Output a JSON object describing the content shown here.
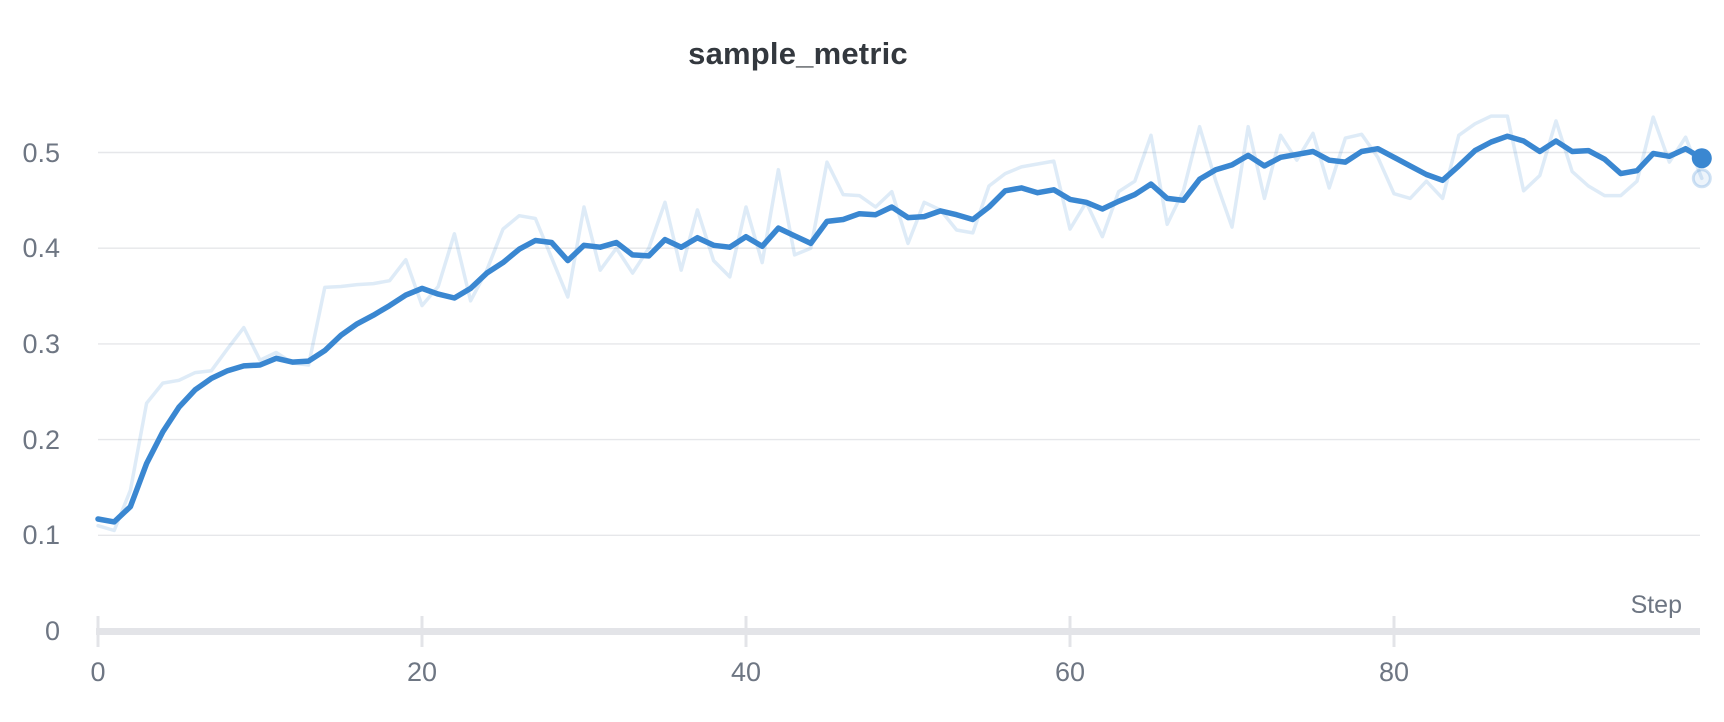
{
  "header": {
    "title": "sample_metric"
  },
  "colors": {
    "accent": "#3a87d1",
    "raw_line": "#d9e7f8",
    "title_text": "#33383e",
    "axis_text": "#6e7683",
    "gridline": "#e6e7ea",
    "axis_bar": "#e3e4e8",
    "background": "#ffffff"
  },
  "axes": {
    "x_label": "Step",
    "x_tick_labels": [
      "0",
      "20",
      "40",
      "60",
      "80"
    ],
    "y_tick_labels": [
      "0.5",
      "0.4",
      "0.3",
      "0.2",
      "0.1",
      "0"
    ]
  },
  "chart_data": {
    "type": "line",
    "title": "sample_metric",
    "xlabel": "Step",
    "ylabel": "",
    "x_min": 0,
    "x_max": 99,
    "x_step": 1,
    "xlim": [
      0,
      99
    ],
    "ylim": [
      0,
      0.55
    ],
    "x_ticks": [
      0,
      20,
      40,
      60,
      80
    ],
    "y_ticks": [
      0,
      0.1,
      0.2,
      0.3,
      0.4,
      0.5
    ],
    "grid": "horizontal",
    "legend": "none",
    "end_markers": {
      "smoothed_solid_dot": true,
      "raw_ghost_dot": true
    },
    "series": [
      {
        "name": "raw",
        "style": "faint",
        "values": [
          0.11,
          0.105,
          0.147,
          0.238,
          0.259,
          0.262,
          0.27,
          0.272,
          0.295,
          0.317,
          0.283,
          0.291,
          0.28,
          0.278,
          0.359,
          0.36,
          0.362,
          0.363,
          0.366,
          0.388,
          0.34,
          0.36,
          0.415,
          0.345,
          0.377,
          0.42,
          0.434,
          0.431,
          0.39,
          0.349,
          0.443,
          0.377,
          0.4,
          0.374,
          0.4,
          0.448,
          0.377,
          0.44,
          0.387,
          0.37,
          0.443,
          0.385,
          0.482,
          0.393,
          0.4,
          0.49,
          0.456,
          0.455,
          0.443,
          0.459,
          0.405,
          0.448,
          0.44,
          0.419,
          0.416,
          0.465,
          0.478,
          0.485,
          0.488,
          0.491,
          0.42,
          0.448,
          0.412,
          0.459,
          0.47,
          0.518,
          0.425,
          0.46,
          0.527,
          0.47,
          0.422,
          0.527,
          0.452,
          0.518,
          0.492,
          0.52,
          0.463,
          0.515,
          0.519,
          0.495,
          0.457,
          0.452,
          0.47,
          0.452,
          0.518,
          0.53,
          0.538,
          0.538,
          0.46,
          0.476,
          0.533,
          0.48,
          0.465,
          0.455,
          0.455,
          0.47,
          0.537,
          0.49,
          0.516,
          0.473
        ]
      },
      {
        "name": "smoothed",
        "style": "solid",
        "values": [
          0.117,
          0.114,
          0.13,
          0.175,
          0.208,
          0.234,
          0.252,
          0.264,
          0.272,
          0.277,
          0.278,
          0.285,
          0.281,
          0.282,
          0.293,
          0.309,
          0.321,
          0.33,
          0.34,
          0.351,
          0.358,
          0.352,
          0.348,
          0.358,
          0.374,
          0.385,
          0.399,
          0.408,
          0.406,
          0.387,
          0.403,
          0.401,
          0.406,
          0.393,
          0.392,
          0.409,
          0.401,
          0.411,
          0.403,
          0.401,
          0.412,
          0.402,
          0.421,
          0.413,
          0.405,
          0.428,
          0.43,
          0.436,
          0.435,
          0.443,
          0.432,
          0.433,
          0.439,
          0.435,
          0.43,
          0.443,
          0.46,
          0.463,
          0.458,
          0.461,
          0.451,
          0.448,
          0.441,
          0.449,
          0.456,
          0.467,
          0.452,
          0.45,
          0.472,
          0.482,
          0.487,
          0.497,
          0.486,
          0.495,
          0.498,
          0.501,
          0.492,
          0.49,
          0.501,
          0.504,
          0.495,
          0.486,
          0.477,
          0.471,
          0.486,
          0.502,
          0.511,
          0.517,
          0.512,
          0.501,
          0.512,
          0.501,
          0.502,
          0.493,
          0.478,
          0.481,
          0.499,
          0.496,
          0.504,
          0.494
        ]
      }
    ]
  }
}
